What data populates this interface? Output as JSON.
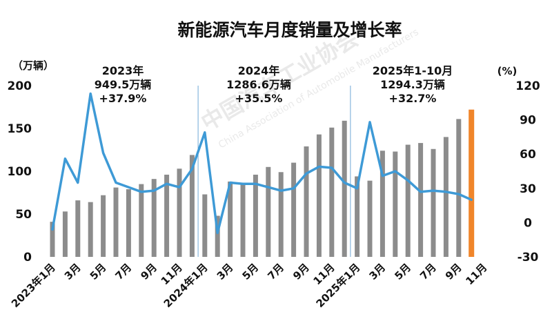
{
  "chart_data": {
    "type": "bar",
    "title": "新能源汽车月度销量及增长率",
    "left_axis": {
      "unit": "（万辆）",
      "ylim": [
        0,
        200
      ],
      "ticks": [
        0,
        50,
        100,
        150,
        200
      ]
    },
    "right_axis": {
      "unit": "(%)",
      "ylim": [
        -30,
        120
      ],
      "ticks": [
        -30,
        0,
        30,
        60,
        90,
        120
      ]
    },
    "x_tick_labels": [
      "2023年1月",
      "3月",
      "5月",
      "7月",
      "9月",
      "11月",
      "2024年1月",
      "3月",
      "5月",
      "7月",
      "9月",
      "11月",
      "2025年1月",
      "3月",
      "5月",
      "7月",
      "9月",
      "11月"
    ],
    "categories": [
      "2023-01",
      "2023-02",
      "2023-03",
      "2023-04",
      "2023-05",
      "2023-06",
      "2023-07",
      "2023-08",
      "2023-09",
      "2023-10",
      "2023-11",
      "2023-12",
      "2024-01",
      "2024-02",
      "2024-03",
      "2024-04",
      "2024-05",
      "2024-06",
      "2024-07",
      "2024-08",
      "2024-09",
      "2024-10",
      "2024-11",
      "2024-12",
      "2025-01",
      "2025-02",
      "2025-03",
      "2025-04",
      "2025-05",
      "2025-06",
      "2025-07",
      "2025-08",
      "2025-09",
      "2025-10"
    ],
    "series": [
      {
        "type": "bar",
        "axis": "left",
        "color": "#8c8c8c",
        "highlight_color": "#f0852a",
        "values": [
          41,
          53,
          66,
          64,
          72,
          81,
          79,
          85,
          91,
          96,
          103,
          119,
          73,
          48,
          88,
          85,
          96,
          105,
          99,
          110,
          129,
          143,
          151,
          159,
          94,
          89,
          124,
          123,
          131,
          133,
          126,
          140,
          161,
          172
        ]
      },
      {
        "type": "line",
        "axis": "right",
        "color": "#3e9ad6",
        "values": [
          -6,
          56,
          35,
          113,
          61,
          35,
          31,
          27,
          28,
          34,
          31,
          47,
          79,
          -9,
          35,
          34,
          34,
          31,
          28,
          30,
          43,
          49,
          48,
          35,
          30,
          88,
          41,
          45,
          37,
          27,
          28,
          27,
          25,
          20
        ]
      }
    ],
    "annotations": [
      {
        "lines": [
          "2023年",
          "949.5万辆",
          "+37.9%"
        ]
      },
      {
        "lines": [
          "2024年",
          "1286.6万辆",
          "+35.5%"
        ]
      },
      {
        "lines": [
          "2025年1-10月",
          "1294.3万辆",
          "+32.7%"
        ]
      }
    ],
    "watermark": [
      "中国汽车工业协会",
      "China Association of Automobile Manufacturers"
    ]
  },
  "colors": {
    "bar": "#8c8c8c",
    "highlight": "#f0852a",
    "line": "#3e9ad6",
    "divider": "#6fa8d6"
  }
}
